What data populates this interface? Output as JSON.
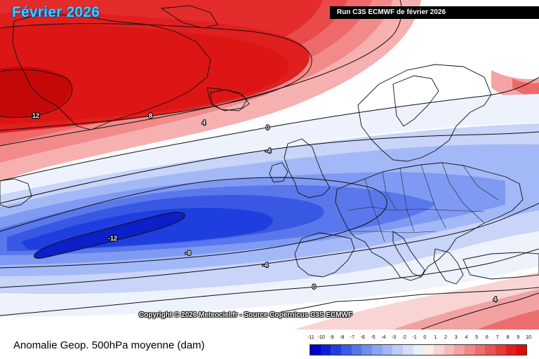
{
  "title": "Février 2026",
  "run_label": "Run C3S ECMWF de février 2026",
  "copyright": "Copyright © 2026 Meteociel.fr - Source Copernicus C3S ECMWF",
  "caption": "Anomalie Geop. 500hPa moyenne (dam)",
  "colorbar": {
    "ticks": [
      "-11",
      "-10",
      "-9",
      "-8",
      "-7",
      "-6",
      "-5",
      "-4",
      "-3",
      "-2",
      "-1",
      "0",
      "1",
      "2",
      "3",
      "4",
      "5",
      "6",
      "7",
      "8",
      "9",
      "10"
    ],
    "colors": [
      "#0000c8",
      "#0d1fd6",
      "#1f3ee0",
      "#3a5ae6",
      "#5474ec",
      "#6f8cf0",
      "#8aa3f3",
      "#a3b8f6",
      "#bccbf8",
      "#d4ddfa",
      "#eaeffc",
      "#fcecec",
      "#f9d4d4",
      "#f6bcbc",
      "#f3a2a2",
      "#f08888",
      "#ec6e6e",
      "#e85454",
      "#e43a3a",
      "#e01f1f",
      "#dc0f0f"
    ]
  },
  "contour_labels": [
    {
      "text": "12",
      "value": 12
    },
    {
      "text": "8",
      "value": 8
    },
    {
      "text": "4",
      "value": 4
    },
    {
      "text": "0",
      "value": 0
    },
    {
      "text": "-4",
      "value": -4
    },
    {
      "text": "-12",
      "value": -12
    },
    {
      "text": "-8",
      "value": -8
    },
    {
      "text": "-4",
      "value": -4
    },
    {
      "text": "0",
      "value": 0
    },
    {
      "text": "4",
      "value": 4
    }
  ]
}
